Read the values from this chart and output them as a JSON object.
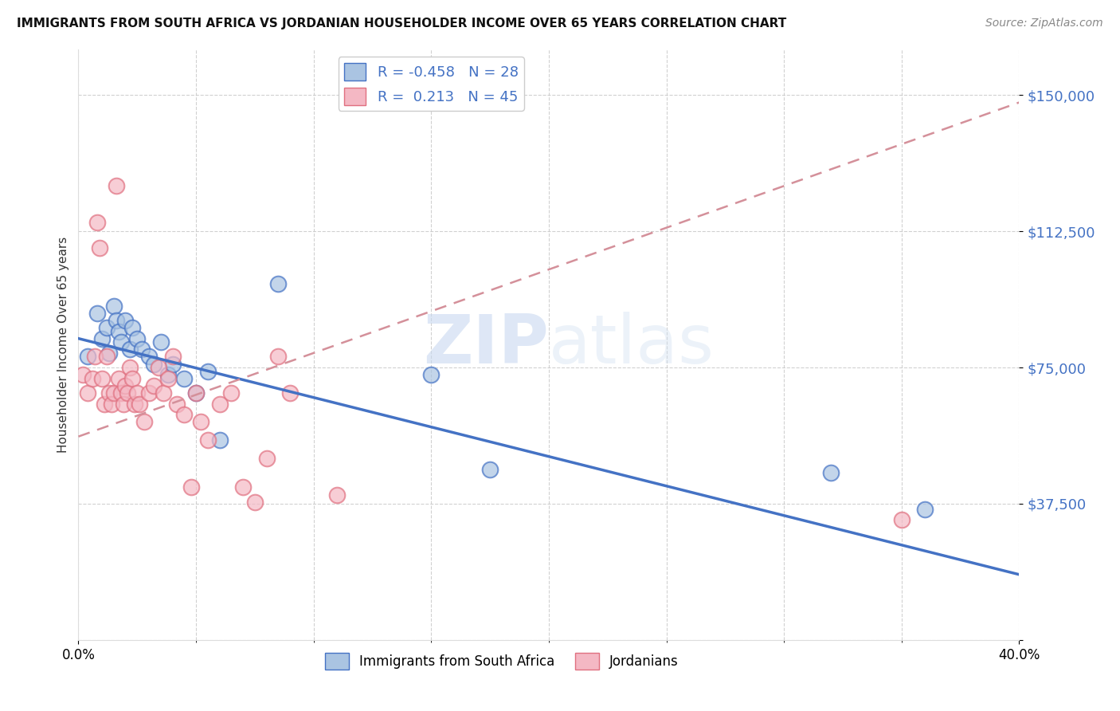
{
  "title": "IMMIGRANTS FROM SOUTH AFRICA VS JORDANIAN HOUSEHOLDER INCOME OVER 65 YEARS CORRELATION CHART",
  "source": "Source: ZipAtlas.com",
  "ylabel": "Householder Income Over 65 years",
  "xlim": [
    0.0,
    0.4
  ],
  "ylim": [
    0,
    162500
  ],
  "yticks": [
    0,
    37500,
    75000,
    112500,
    150000
  ],
  "ytick_labels": [
    "",
    "$37,500",
    "$75,000",
    "$112,500",
    "$150,000"
  ],
  "blue_color": "#aac4e2",
  "pink_color": "#f4b8c4",
  "blue_line_color": "#4472c4",
  "pink_line_color": "#e07080",
  "pink_dashed_color": "#d4909a",
  "r_blue": -0.458,
  "n_blue": 28,
  "r_pink": 0.213,
  "n_pink": 45,
  "legend_label_blue": "Immigrants from South Africa",
  "legend_label_pink": "Jordanians",
  "watermark_zip": "ZIP",
  "watermark_atlas": "atlas",
  "blue_trend_x0": 0.0,
  "blue_trend_y0": 83000,
  "blue_trend_x1": 0.4,
  "blue_trend_y1": 18000,
  "pink_trend_x0": 0.0,
  "pink_trend_y0": 56000,
  "pink_trend_x1": 0.4,
  "pink_trend_y1": 148000,
  "blue_scatter_x": [
    0.004,
    0.008,
    0.01,
    0.012,
    0.013,
    0.015,
    0.016,
    0.017,
    0.018,
    0.02,
    0.022,
    0.023,
    0.025,
    0.027,
    0.03,
    0.032,
    0.035,
    0.038,
    0.04,
    0.045,
    0.05,
    0.055,
    0.06,
    0.085,
    0.15,
    0.175,
    0.32,
    0.36
  ],
  "blue_scatter_y": [
    78000,
    90000,
    83000,
    86000,
    79000,
    92000,
    88000,
    85000,
    82000,
    88000,
    80000,
    86000,
    83000,
    80000,
    78000,
    76000,
    82000,
    73000,
    76000,
    72000,
    68000,
    74000,
    55000,
    98000,
    73000,
    47000,
    46000,
    36000
  ],
  "pink_scatter_x": [
    0.002,
    0.004,
    0.006,
    0.007,
    0.008,
    0.009,
    0.01,
    0.011,
    0.012,
    0.013,
    0.014,
    0.015,
    0.016,
    0.017,
    0.018,
    0.019,
    0.02,
    0.021,
    0.022,
    0.023,
    0.024,
    0.025,
    0.026,
    0.028,
    0.03,
    0.032,
    0.034,
    0.036,
    0.038,
    0.04,
    0.042,
    0.045,
    0.048,
    0.05,
    0.052,
    0.055,
    0.06,
    0.065,
    0.07,
    0.075,
    0.08,
    0.085,
    0.09,
    0.11,
    0.35
  ],
  "pink_scatter_y": [
    73000,
    68000,
    72000,
    78000,
    115000,
    108000,
    72000,
    65000,
    78000,
    68000,
    65000,
    68000,
    125000,
    72000,
    68000,
    65000,
    70000,
    68000,
    75000,
    72000,
    65000,
    68000,
    65000,
    60000,
    68000,
    70000,
    75000,
    68000,
    72000,
    78000,
    65000,
    62000,
    42000,
    68000,
    60000,
    55000,
    65000,
    68000,
    42000,
    38000,
    50000,
    78000,
    68000,
    40000,
    33000
  ]
}
